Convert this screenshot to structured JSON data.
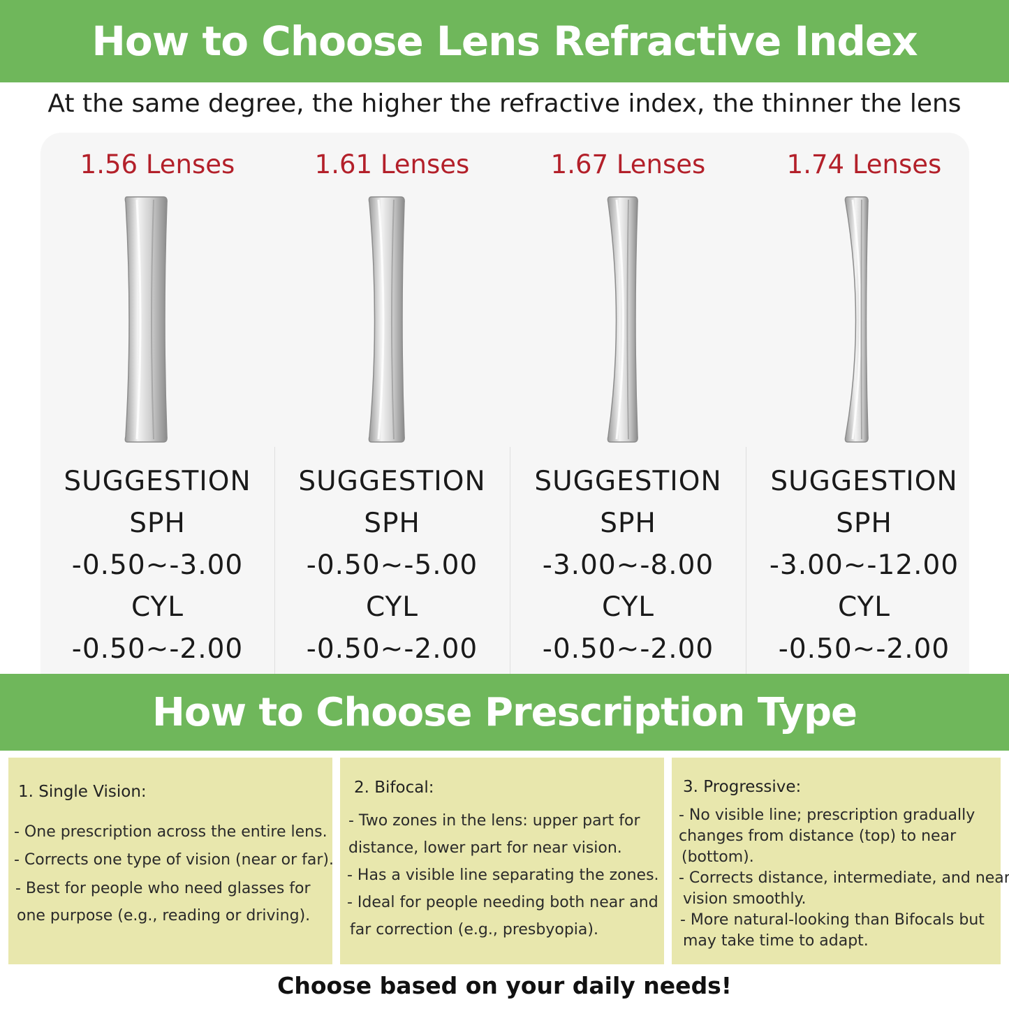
{
  "header": {
    "title": "How to Choose Lens Refractive Index",
    "subtitle": "At the same degree, the higher the refractive index, the thinner the lens"
  },
  "lenses": [
    {
      "title": "1.56 Lenses",
      "suggestion": "SUGGESTION",
      "sph_label": "SPH",
      "sph": "-0.50~-3.00",
      "cyl_label": "CYL",
      "cyl": "-0.50~-2.00"
    },
    {
      "title": "1.61 Lenses",
      "suggestion": "SUGGESTION",
      "sph_label": "SPH",
      "sph": "-0.50~-5.00",
      "cyl_label": "CYL",
      "cyl": "-0.50~-2.00"
    },
    {
      "title": "1.67 Lenses",
      "suggestion": "SUGGESTION",
      "sph_label": "SPH",
      "sph": "-3.00~-8.00",
      "cyl_label": "CYL",
      "cyl": "-0.50~-2.00"
    },
    {
      "title": "1.74 Lenses",
      "suggestion": "SUGGESTION",
      "sph_label": "SPH",
      "sph": "-3.00~-12.00",
      "cyl_label": "CYL",
      "cyl": "-0.50~-2.00"
    }
  ],
  "prescription": {
    "title": "How to Choose Prescription Type",
    "cards": [
      {
        "title": "1. Single Vision:",
        "lines": [
          "- One prescription across the entire lens.",
          "- Corrects one type of vision (near or far).",
          "- Best for people who need glasses for",
          "one purpose (e.g., reading or driving)."
        ]
      },
      {
        "title": "2. Bifocal:",
        "lines": [
          " - Two zones in the lens: upper part for",
          "distance, lower part for near vision.",
          "- Has a visible line separating the zones.",
          "- Ideal for people needing both near and",
          " far correction (e.g., presbyopia)."
        ]
      },
      {
        "title": "3. Progressive:",
        "lines": [
          "- No visible line; prescription gradually",
          "changes from distance (top) to near",
          " (bottom).",
          "- Corrects distance, intermediate, and near",
          " vision smoothly.",
          " - More natural-looking than Bifocals but",
          "may take time to adapt."
        ]
      }
    ],
    "footer": "Choose based on your daily needs!"
  },
  "colors": {
    "green": "#6fb75b",
    "red_title": "#b3202a",
    "card_bg": "#e8e7ad"
  }
}
